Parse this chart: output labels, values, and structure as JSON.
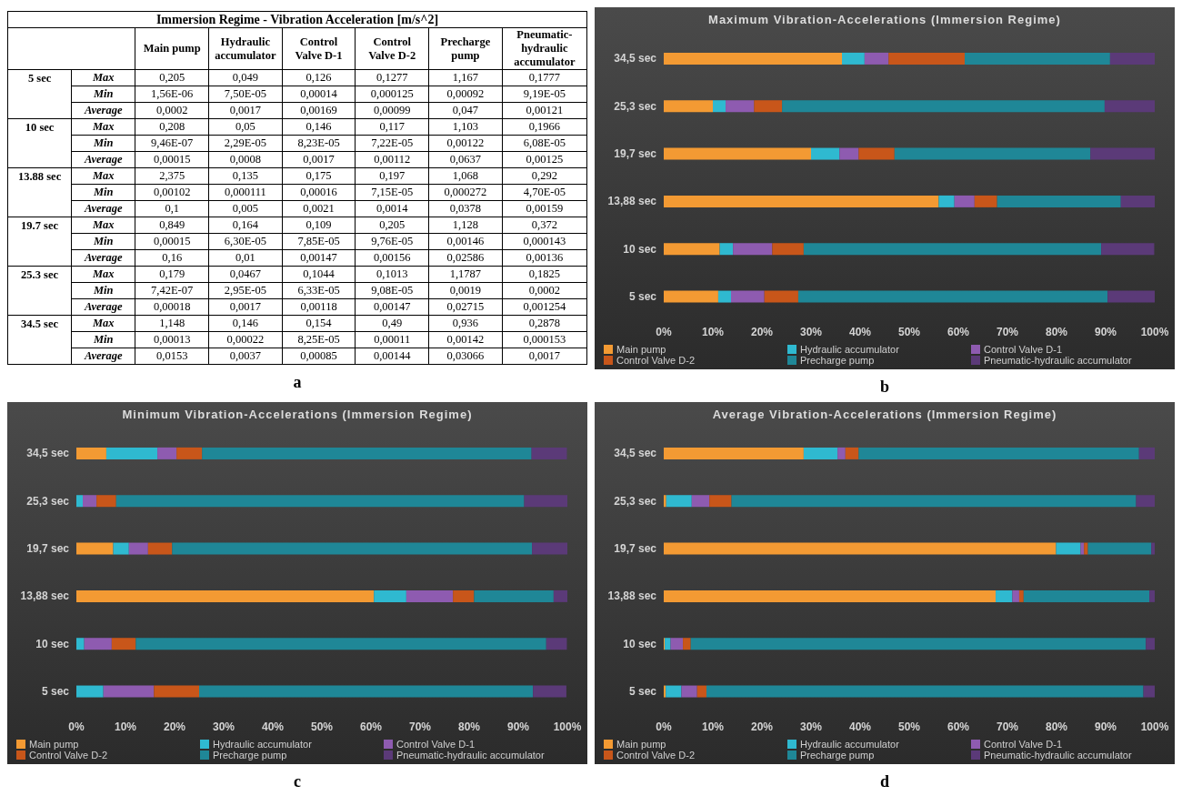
{
  "chart_data": [
    {
      "type": "other",
      "title": "Immersion Regime - Vibration Acceleration [m/s^2]",
      "annotations": [
        "a"
      ],
      "categories": [
        "Main pump",
        "Hydraulic accumulator",
        "Control Valve D-1",
        "Control Valve D-2",
        "Precharge pump",
        "Pneumatic-hydraulic accumulator"
      ],
      "y_categories": [
        "Max",
        "Min",
        "Average",
        "Max",
        "Min",
        "Average",
        "Max",
        "Min",
        "Average",
        "Max",
        "Min",
        "Average",
        "Max",
        "Min",
        "Average",
        "Max",
        "Min",
        "Average"
      ],
      "y2_categories": [
        "5 sec",
        null,
        null,
        "10 sec",
        null,
        null,
        "13.88 sec",
        null,
        null,
        "19.7 sec",
        null,
        null,
        "25.3 sec",
        null,
        null,
        "34.5 sec",
        null,
        null
      ],
      "cell_labels": [
        [
          "0,205",
          "0,049",
          "0,126",
          "0,1277",
          "1,167",
          "0,1777"
        ],
        [
          "1,56E-06",
          "7,50E-05",
          "0,00014",
          "0,000125",
          "0,00092",
          "9,19E-05"
        ],
        [
          "0,0002",
          "0,0017",
          "0,00169",
          "0,00099",
          "0,047",
          "0,00121"
        ],
        [
          "0,208",
          "0,05",
          "0,146",
          "0,117",
          "1,103",
          "0,1966"
        ],
        [
          "9,46E-07",
          "2,29E-05",
          "8,23E-05",
          "7,22E-05",
          "0,00122",
          "6,08E-05"
        ],
        [
          "0,00015",
          "0,0008",
          "0,0017",
          "0,00112",
          "0,0637",
          "0,00125"
        ],
        [
          "2,375",
          "0,135",
          "0,175",
          "0,197",
          "1,068",
          "0,292"
        ],
        [
          "0,00102",
          "0,000111",
          "0,00016",
          "7,15E-05",
          "0,000272",
          "4,70E-05"
        ],
        [
          "0,1",
          "0,005",
          "0,0021",
          "0,0014",
          "0,0378",
          "0,00159"
        ],
        [
          "0,849",
          "0,164",
          "0,109",
          "0,205",
          "1,128",
          "0,372"
        ],
        [
          "0,00015",
          "6,30E-05",
          "7,85E-05",
          "9,76E-05",
          "0,00146",
          "0,000143"
        ],
        [
          "0,16",
          "0,01",
          "0,00147",
          "0,00156",
          "0,02586",
          "0,00136"
        ],
        [
          "0,179",
          "0,0467",
          "0,1044",
          "0,1013",
          "1,1787",
          "0,1825"
        ],
        [
          "7,42E-07",
          "2,95E-05",
          "6,33E-05",
          "9,08E-05",
          "0,0019",
          "0,0002"
        ],
        [
          "0,00018",
          "0,0017",
          "0,00118",
          "0,00147",
          "0,02715",
          "0,001254"
        ],
        [
          "1,148",
          "0,146",
          "0,154",
          "0,49",
          "0,936",
          "0,2878"
        ],
        [
          "0,00013",
          "0,00022",
          "8,25E-05",
          "0,00011",
          "0,00142",
          "0,000153"
        ],
        [
          "0,0153",
          "0,0037",
          "0,00085",
          "0,00144",
          "0,03066",
          "0,0017"
        ]
      ]
    },
    {
      "type": "bar",
      "title": "Maximum Vibration-Accelerations (Immersion Regime)",
      "annotations": [
        "b"
      ],
      "orientation": "horizontal",
      "stacked": true,
      "legend": "bottom",
      "categories": [
        "34,5 sec",
        "25,3 sec",
        "19,7 sec",
        "13,88 sec",
        "10 sec",
        "5 sec"
      ],
      "xlim": [
        0,
        100
      ],
      "xticks": [
        {
          "value": 0,
          "label": "0%"
        },
        {
          "value": 10,
          "label": "10%"
        },
        {
          "value": 20,
          "label": "20%"
        },
        {
          "value": 30,
          "label": "30%"
        },
        {
          "value": 40,
          "label": "40%"
        },
        {
          "value": 50,
          "label": "50%"
        },
        {
          "value": 60,
          "label": "60%"
        },
        {
          "value": 70,
          "label": "70%"
        },
        {
          "value": 80,
          "label": "80%"
        },
        {
          "value": 90,
          "label": "90%"
        },
        {
          "value": 100,
          "label": "100%"
        }
      ],
      "series": [
        {
          "name": "Main pump",
          "color": "#f39a33",
          "values": [
            36.3,
            10.0,
            30.0,
            56.0,
            11.4,
            11.1
          ]
        },
        {
          "name": "Hydraulic  accumulator",
          "color": "#2fb9d0",
          "values": [
            4.6,
            2.6,
            5.8,
            3.2,
            2.7,
            2.6
          ]
        },
        {
          "name": "Control Valve D-1",
          "color": "#8e5bb0",
          "values": [
            4.9,
            5.8,
            3.9,
            4.1,
            8.0,
            6.8
          ]
        },
        {
          "name": "Control Valve D-2",
          "color": "#c8561a",
          "values": [
            15.5,
            5.7,
            7.3,
            4.6,
            6.4,
            6.9
          ]
        },
        {
          "name": "Precharge pump",
          "color": "#1f8797",
          "values": [
            29.6,
            65.7,
            39.9,
            25.2,
            60.6,
            63.0
          ]
        },
        {
          "name": "Pneumatic-hydraulic accumulator",
          "color": "#5b3a78",
          "values": [
            9.1,
            10.2,
            13.1,
            6.9,
            10.8,
            9.6
          ]
        }
      ]
    },
    {
      "type": "bar",
      "title": "Minimum Vibration-Accelerations (Immersion Regime)",
      "annotations": [
        "c"
      ],
      "orientation": "horizontal",
      "stacked": true,
      "legend": "bottom",
      "categories": [
        "34,5 sec",
        "25,3 sec",
        "19,7 sec",
        "13,88 sec",
        "10 sec",
        "5 sec"
      ],
      "xlim": [
        0,
        100
      ],
      "xticks": [
        {
          "value": 0,
          "label": "0%"
        },
        {
          "value": 10,
          "label": "10%"
        },
        {
          "value": 20,
          "label": "20%"
        },
        {
          "value": 30,
          "label": "30%"
        },
        {
          "value": 40,
          "label": "40%"
        },
        {
          "value": 50,
          "label": "50%"
        },
        {
          "value": 60,
          "label": "60%"
        },
        {
          "value": 70,
          "label": "70%"
        },
        {
          "value": 80,
          "label": "80%"
        },
        {
          "value": 90,
          "label": "90%"
        },
        {
          "value": 100,
          "label": "100%"
        }
      ],
      "series": [
        {
          "name": "Main pump",
          "color": "#f39a33",
          "values": [
            6.1,
            0.0,
            7.5,
            60.6,
            null,
            null
          ]
        },
        {
          "name": "Hydraulic  accumulator",
          "color": "#2fb9d0",
          "values": [
            10.4,
            1.3,
            3.2,
            6.6,
            1.6,
            5.5
          ]
        },
        {
          "name": "Control Valve D-1",
          "color": "#8e5bb0",
          "values": [
            3.9,
            2.8,
            3.9,
            9.5,
            5.6,
            10.3
          ]
        },
        {
          "name": "Control Valve D-2",
          "color": "#c8561a",
          "values": [
            5.2,
            4.0,
            4.9,
            4.3,
            4.9,
            9.2
          ]
        },
        {
          "name": "Precharge pump",
          "color": "#1f8797",
          "values": [
            67.1,
            83.1,
            73.3,
            16.2,
            83.6,
            68.0
          ]
        },
        {
          "name": "Pneumatic-hydraulic accumulator",
          "color": "#5b3a78",
          "values": [
            7.2,
            8.8,
            7.2,
            2.8,
            4.2,
            6.8
          ]
        }
      ]
    },
    {
      "type": "bar",
      "title": "Average Vibration-Accelerations (Immersion Regime)",
      "annotations": [
        "d"
      ],
      "orientation": "horizontal",
      "stacked": true,
      "legend": "bottom",
      "categories": [
        "34,5 sec",
        "25,3 sec",
        "19,7 sec",
        "13,88 sec",
        "10 sec",
        "5 sec"
      ],
      "xlim": [
        0,
        100
      ],
      "xticks": [
        {
          "value": 0,
          "label": "0%"
        },
        {
          "value": 10,
          "label": "10%"
        },
        {
          "value": 20,
          "label": "20%"
        },
        {
          "value": 30,
          "label": "30%"
        },
        {
          "value": 40,
          "label": "40%"
        },
        {
          "value": 50,
          "label": "50%"
        },
        {
          "value": 60,
          "label": "60%"
        },
        {
          "value": 70,
          "label": "70%"
        },
        {
          "value": 80,
          "label": "80%"
        },
        {
          "value": 90,
          "label": "90%"
        },
        {
          "value": 100,
          "label": "100%"
        }
      ],
      "series": [
        {
          "name": "Main pump",
          "color": "#f39a33",
          "values": [
            28.5,
            0.5,
            79.9,
            67.6,
            0.2,
            0.4
          ]
        },
        {
          "name": "Hydraulic  accumulator",
          "color": "#2fb9d0",
          "values": [
            6.9,
            5.2,
            5.0,
            3.4,
            1.2,
            3.2
          ]
        },
        {
          "name": "Control Valve D-1",
          "color": "#8e5bb0",
          "values": [
            1.6,
            3.6,
            0.7,
            1.4,
            2.5,
            3.2
          ]
        },
        {
          "name": "Control Valve D-2",
          "color": "#c8561a",
          "values": [
            2.7,
            4.5,
            0.8,
            0.9,
            1.6,
            1.9
          ]
        },
        {
          "name": "Precharge pump",
          "color": "#1f8797",
          "values": [
            57.1,
            82.4,
            12.9,
            25.6,
            92.7,
            89.0
          ]
        },
        {
          "name": "Pneumatic-hydraulic accumulator",
          "color": "#5b3a78",
          "values": [
            3.2,
            3.8,
            0.7,
            1.1,
            1.8,
            2.3
          ]
        }
      ]
    }
  ]
}
